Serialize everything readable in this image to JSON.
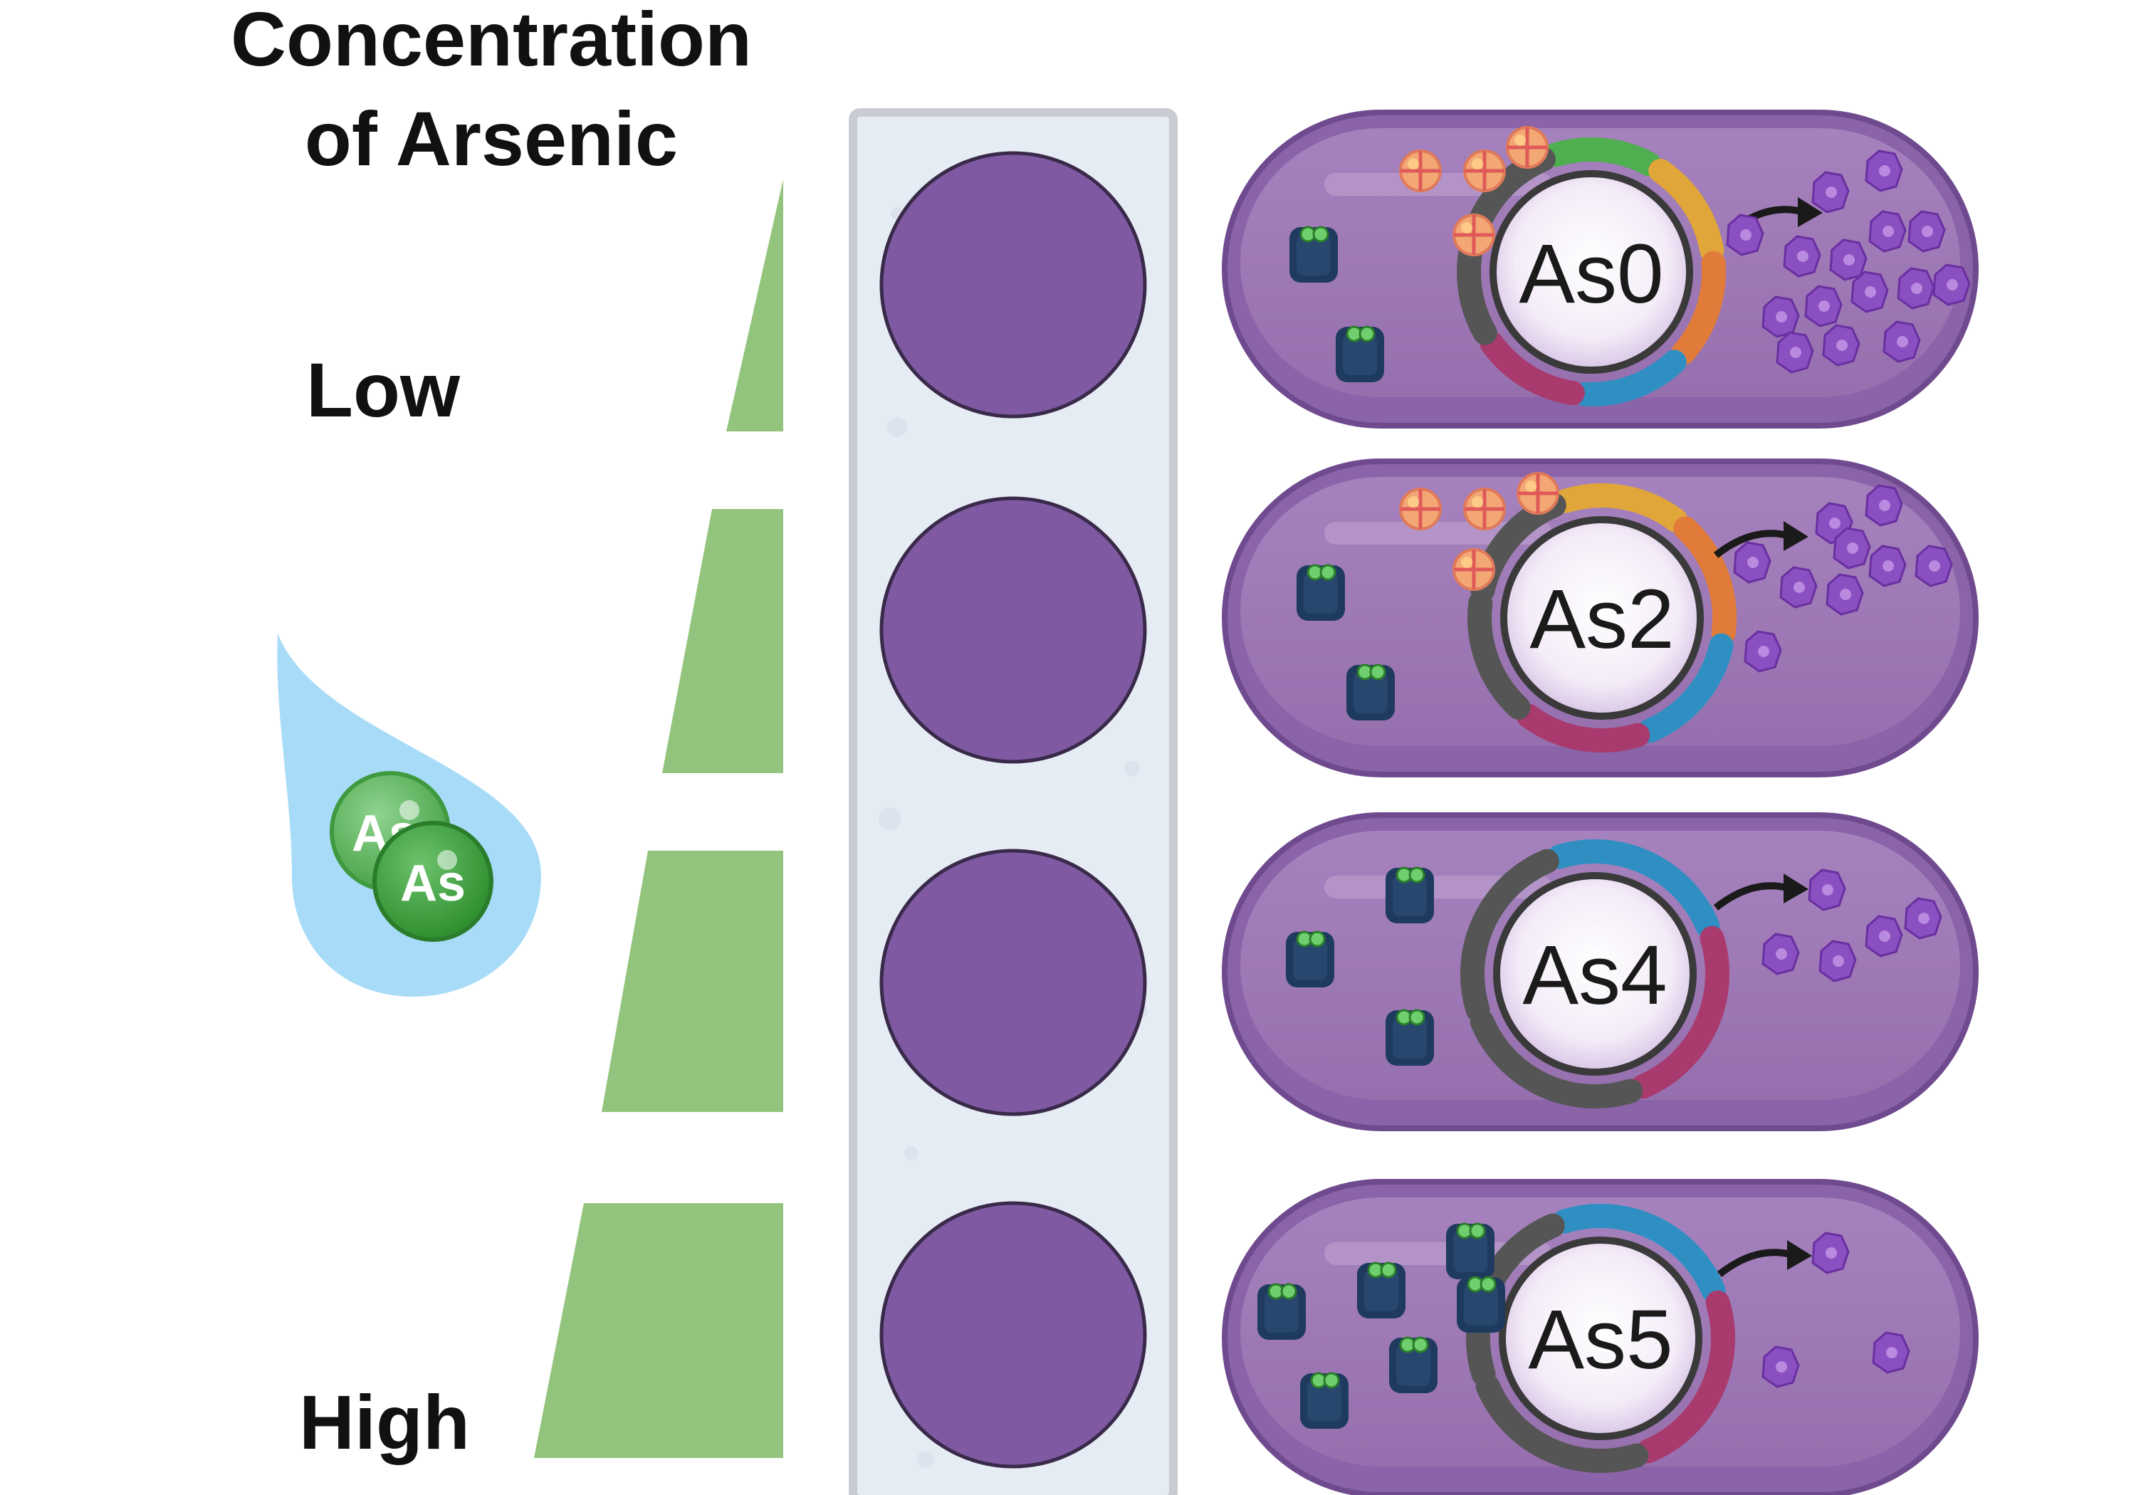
{
  "title_line1": "Concentration",
  "title_line2": "of Arsenic",
  "label_low": "Low",
  "label_high": "High",
  "droplet": {
    "atoms": [
      {
        "label": "As",
        "color": "#5fb85f"
      },
      {
        "label": "As",
        "color": "#3f9f3f"
      }
    ],
    "color": "#a8dbf7"
  },
  "gradient_levels": [
    {
      "name": "level-1",
      "relative_amount": 0.1
    },
    {
      "name": "level-2",
      "relative_amount": 0.45
    },
    {
      "name": "level-3",
      "relative_amount": 0.7
    },
    {
      "name": "level-4",
      "relative_amount": 1.0
    }
  ],
  "wells": {
    "color": "#7f5aa3",
    "count": 4
  },
  "cells": [
    {
      "plasmid_label": "As0",
      "repressors": 4,
      "bound_repressors": 2,
      "output_proteins": 15,
      "segments": [
        "#4fae4f",
        "#e0a63a",
        "#e07b3a",
        "#2f8fc3",
        "#a83a6e",
        "#555555",
        "#555555"
      ]
    },
    {
      "plasmid_label": "As2",
      "repressors": 4,
      "bound_repressors": 2,
      "output_proteins": 9,
      "segments": [
        "#e0a63a",
        "#e07b3a",
        "#2f8fc3",
        "#a83a6e",
        "#555555",
        "#555555"
      ]
    },
    {
      "plasmid_label": "As4",
      "repressors": 0,
      "bound_repressors": 3,
      "output_proteins": 5,
      "segments": [
        "#2f8fc3",
        "#a83a6e",
        "#555555",
        "#555555"
      ]
    },
    {
      "plasmid_label": "As5",
      "repressors": 0,
      "bound_repressors": 6,
      "output_proteins": 3,
      "segments": [
        "#2f8fc3",
        "#a83a6e",
        "#555555",
        "#555555"
      ]
    }
  ],
  "colors": {
    "gradient": "#93c47d",
    "cell_outer": "#8a63a8",
    "cell_inner": "#a07ab8",
    "panel": "#e6ecf4",
    "panel_border": "#c8ccd2",
    "protein": "#8a4fc0",
    "repressor": "#1f3a5f"
  }
}
